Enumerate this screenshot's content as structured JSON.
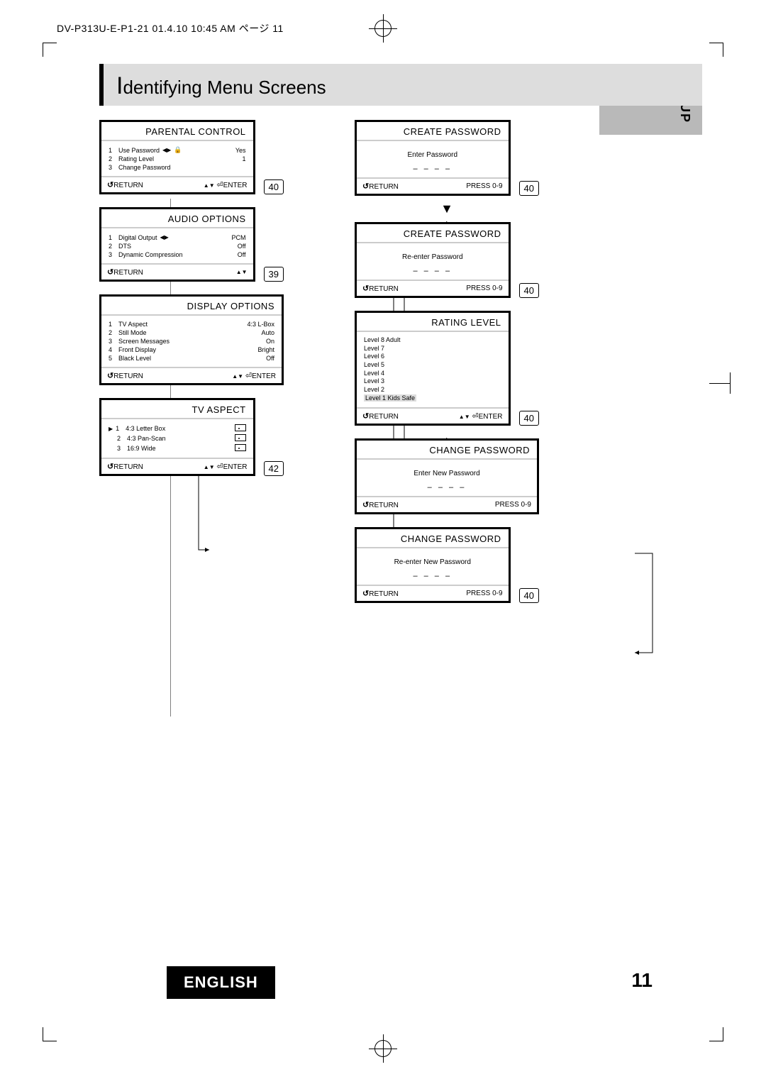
{
  "meta": {
    "header_stamp": "DV-P313U-E-P1-21  01.4.10 10:45 AM  ページ 11",
    "page_number": "11",
    "language_label": "ENGLISH",
    "section_tab": "SETUP",
    "title_first_letter": "I",
    "title_rest": "dentifying Menu Screens"
  },
  "footer_labels": {
    "return": "RETURN",
    "enter": "ENTER",
    "press09": "PRESS 0-9"
  },
  "left_screens": [
    {
      "title": "PARENTAL CONTROL",
      "rows": [
        {
          "n": "1",
          "label": "Use Password",
          "val": "Yes",
          "icons": "lr_lock"
        },
        {
          "n": "2",
          "label": "Rating Level",
          "val": "1"
        },
        {
          "n": "3",
          "label": "Change Password",
          "val": ""
        }
      ],
      "footer_right": "ud_enter",
      "page_ref": "40"
    },
    {
      "title": "AUDIO OPTIONS",
      "rows": [
        {
          "n": "1",
          "label": "Digital Output",
          "val": "PCM",
          "icons": "lr"
        },
        {
          "n": "2",
          "label": "DTS",
          "val": "Off"
        },
        {
          "n": "3",
          "label": "Dynamic Compression",
          "val": "Off"
        }
      ],
      "footer_right": "ud",
      "page_ref": "39"
    },
    {
      "title": "DISPLAY OPTIONS",
      "rows": [
        {
          "n": "1",
          "label": "TV Aspect",
          "val": "4:3 L-Box"
        },
        {
          "n": "2",
          "label": "Still Mode",
          "val": "Auto"
        },
        {
          "n": "3",
          "label": "Screen Messages",
          "val": "On"
        },
        {
          "n": "4",
          "label": "Front Display",
          "val": "Bright"
        },
        {
          "n": "5",
          "label": "Black Level",
          "val": "Off"
        }
      ],
      "footer_right": "ud_enter",
      "page_ref": ""
    },
    {
      "title": "TV ASPECT",
      "tv_rows": [
        {
          "n": "1",
          "label": "4:3 Letter Box",
          "sel": true,
          "play": true
        },
        {
          "n": "2",
          "label": "4:3 Pan-Scan",
          "sel": false
        },
        {
          "n": "3",
          "label": "16:9 Wide",
          "sel": false
        }
      ],
      "footer_right": "ud_enter",
      "page_ref": "42"
    }
  ],
  "right_screens": [
    {
      "title": "CREATE PASSWORD",
      "center_text": "Enter Password",
      "dashes": "– – – –",
      "footer_right": "press",
      "page_ref": "40"
    },
    {
      "title": "CREATE PASSWORD",
      "center_text": "Re-enter Password",
      "dashes": "– – – –",
      "footer_right": "press",
      "page_ref": "40",
      "arrow_above": true
    },
    {
      "title": "RATING LEVEL",
      "ratings": [
        "Level 8 Adult",
        "Level 7",
        "Level 6",
        "Level 5",
        "Level 4",
        "Level 3",
        "Level 2",
        "Level 1 Kids Safe"
      ],
      "footer_right": "ud_enter",
      "page_ref": "40"
    },
    {
      "title": "CHANGE PASSWORD",
      "center_text": "Enter New Password",
      "dashes": "– – – –",
      "footer_right": "press",
      "page_ref": ""
    },
    {
      "title": "CHANGE PASSWORD",
      "center_text": "Re-enter New Password",
      "dashes": "– – – –",
      "footer_right": "press",
      "page_ref": "40"
    }
  ]
}
